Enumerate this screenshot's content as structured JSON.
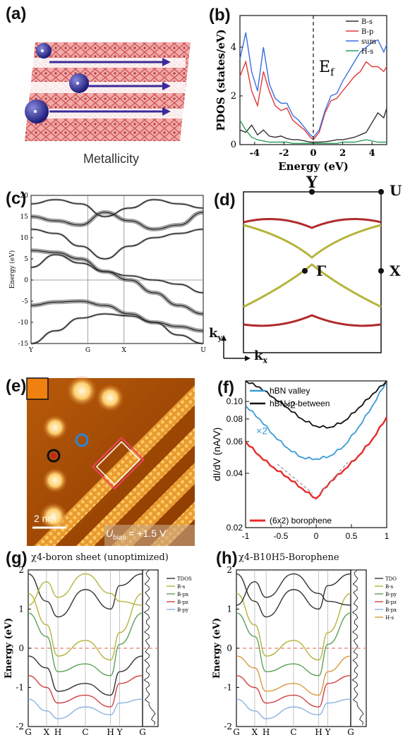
{
  "labels": {
    "a": "(a)",
    "b": "(b)",
    "c": "(c)",
    "d": "(d)",
    "e": "(e)",
    "f": "(f)",
    "g": "(g)",
    "h": "(h)"
  },
  "panel_a": {
    "caption": "Metallicity"
  },
  "panel_d": {
    "points": {
      "Y": "Y",
      "U": "U",
      "Gamma": "Γ",
      "X": "X"
    },
    "axes": {
      "kx": "k",
      "kx_sub": "x",
      "ky": "k",
      "ky_sub": "y"
    }
  },
  "panel_e": {
    "scale": "2 nm",
    "bias_u": "U",
    "bias_sub": "bias",
    "bias_val": " = +1.5 V"
  },
  "panel_g_title": "χ4-boron sheet (unoptimized)",
  "panel_h_title": "χ4-B10H5-Borophene",
  "colors": {
    "bs": "#333333",
    "bp": "#e03a3a",
    "sum": "#3a6ee0",
    "hs": "#2e9e5a",
    "red": "#cc2a2a",
    "olive": "#b4b43c",
    "stmdark": "#3a1800",
    "stmbright": "#ffcf70"
  },
  "chart_data": [
    {
      "id": "b",
      "type": "line",
      "xlabel": "Energy (eV)",
      "ylabel": "PDOS (states/eV)",
      "xlim": [
        -5,
        5
      ],
      "ylim": [
        0,
        5.3
      ],
      "xticks": [
        "-4",
        "-2",
        "0",
        "2",
        "4"
      ],
      "yticks": [
        "0",
        "2",
        "4"
      ],
      "annotation": "Ef",
      "series": [
        {
          "name": "B-s",
          "color": "#333333",
          "x": [
            -5,
            -4.6,
            -4.2,
            -3.8,
            -3.4,
            -3,
            -2.6,
            -2.2,
            -1.8,
            -1.4,
            -1,
            -0.6,
            -0.2,
            0,
            0.4,
            0.8,
            1.2,
            1.6,
            2,
            2.4,
            2.8,
            3.2,
            3.6,
            4,
            4.4,
            4.8,
            5
          ],
          "values": [
            0.6,
            0.5,
            0.8,
            0.4,
            0.6,
            0.35,
            0.3,
            0.35,
            0.25,
            0.2,
            0.2,
            0.15,
            0.1,
            0.1,
            0.1,
            0.12,
            0.15,
            0.2,
            0.2,
            0.25,
            0.3,
            0.4,
            0.5,
            0.9,
            1.3,
            1.1,
            1.5
          ]
        },
        {
          "name": "B-p",
          "color": "#e03a3a",
          "x": [
            -5,
            -4.6,
            -4.2,
            -3.8,
            -3.4,
            -3,
            -2.6,
            -2.2,
            -1.8,
            -1.4,
            -1,
            -0.6,
            -0.2,
            0,
            0.4,
            0.8,
            1.2,
            1.6,
            2,
            2.4,
            2.8,
            3.2,
            3.6,
            4,
            4.4,
            4.8,
            5
          ],
          "values": [
            2.8,
            3.4,
            2.2,
            1.6,
            3.0,
            2.2,
            1.6,
            1.4,
            1.5,
            1.0,
            0.8,
            0.6,
            0.3,
            0.2,
            0.5,
            1.3,
            1.8,
            1.9,
            2.2,
            2.5,
            2.8,
            3.0,
            3.4,
            3.2,
            3.2,
            3.0,
            3.2
          ]
        },
        {
          "name": "sum",
          "color": "#3a6ee0",
          "x": [
            -5,
            -4.6,
            -4.2,
            -3.8,
            -3.4,
            -3,
            -2.6,
            -2.2,
            -1.8,
            -1.4,
            -1,
            -0.6,
            -0.2,
            0,
            0.4,
            0.8,
            1.2,
            1.6,
            2,
            2.4,
            2.8,
            3.2,
            3.6,
            4,
            4.4,
            4.8,
            5
          ],
          "values": [
            3.5,
            4.6,
            3.0,
            2.2,
            4.0,
            2.5,
            1.9,
            1.7,
            1.7,
            1.2,
            1.0,
            0.7,
            0.4,
            0.3,
            0.6,
            1.4,
            2.0,
            2.1,
            2.6,
            3.0,
            3.4,
            3.8,
            4.0,
            4.2,
            4.3,
            3.8,
            4.1
          ]
        },
        {
          "name": "H-s",
          "color": "#2e9e5a",
          "x": [
            -5,
            -4.6,
            -4.2,
            -3.8,
            -3.4,
            -3,
            -2.6,
            -2.2,
            -1.8,
            -1.4,
            -1,
            -0.6,
            -0.2,
            0,
            0.4,
            0.8,
            1.2,
            1.6,
            2,
            2.4,
            2.8,
            3.2,
            3.6,
            4,
            4.4,
            4.8,
            5
          ],
          "values": [
            1.0,
            0.6,
            0.3,
            0.2,
            0.15,
            0.1,
            0.1,
            0.1,
            0.1,
            0.05,
            0.05,
            0.05,
            0.05,
            0.05,
            0.05,
            0.05,
            0.05,
            0.05,
            0.1,
            0.1,
            0.1,
            0.15,
            0.2,
            0.15,
            0.1,
            0.1,
            0.1
          ]
        }
      ]
    },
    {
      "id": "c",
      "type": "line",
      "ylabel": "Energy (eV)",
      "ylim": [
        -15,
        20
      ],
      "yticks": [
        "-15",
        "-10",
        "-5",
        "0",
        "5",
        "10",
        "15",
        "20"
      ],
      "xticks": [
        "Y",
        "G",
        "X",
        "U"
      ],
      "series": [
        {
          "name": "",
          "values": [
            -15,
            -12,
            -9,
            -8,
            -8.5,
            -10,
            -13,
            -15
          ]
        },
        {
          "name": "",
          "values": [
            -6,
            -5.2,
            -5,
            -6,
            -8,
            -10,
            -11,
            -12
          ]
        },
        {
          "name": "",
          "values": [
            3,
            6,
            4,
            2,
            1,
            0,
            -1,
            -3
          ]
        },
        {
          "name": "",
          "values": [
            7,
            6.5,
            5,
            2,
            0,
            -3,
            -6,
            -8
          ]
        },
        {
          "name": "",
          "values": [
            12,
            11,
            8,
            5,
            8,
            10,
            11,
            12
          ]
        },
        {
          "name": "",
          "values": [
            15,
            14,
            13,
            16,
            14,
            12,
            13,
            16
          ]
        },
        {
          "name": "",
          "values": [
            18,
            19,
            18,
            15,
            17,
            19,
            18,
            17
          ]
        }
      ]
    },
    {
      "id": "f",
      "type": "line",
      "xlabel": "",
      "ylabel": "dI/dV (nA/V)",
      "xlim": [
        -1,
        1
      ],
      "yscale": "log",
      "ylim": [
        0.02,
        0.13
      ],
      "xticks": [
        "-1",
        "-0.5",
        "0",
        "0.5",
        "1"
      ],
      "yticks": [
        "0.02",
        "0.04",
        "0.06",
        "0.08",
        "0.10"
      ],
      "annotations": [
        "×2",
        "×2"
      ],
      "series": [
        {
          "name": "hBN valley",
          "color": "#3a9ad9",
          "x": [
            -1,
            -0.8,
            -0.6,
            -0.4,
            -0.2,
            0,
            0.2,
            0.4,
            0.6,
            0.8,
            1
          ],
          "values": [
            0.095,
            0.08,
            0.065,
            0.055,
            0.049,
            0.048,
            0.05,
            0.057,
            0.072,
            0.095,
            0.13
          ]
        },
        {
          "name": "hBN in-between",
          "color": "#111111",
          "x": [
            -1,
            -0.8,
            -0.6,
            -0.4,
            -0.2,
            0,
            0.2,
            0.4,
            0.6,
            0.8,
            1
          ],
          "values": [
            0.13,
            0.12,
            0.105,
            0.092,
            0.08,
            0.073,
            0.072,
            0.078,
            0.092,
            0.11,
            0.13
          ]
        },
        {
          "name": "(6x2) borophene",
          "color": "#e82a2a",
          "x": [
            -1,
            -0.8,
            -0.6,
            -0.4,
            -0.2,
            0,
            0.2,
            0.4,
            0.6,
            0.8,
            1
          ],
          "values": [
            0.06,
            0.05,
            0.043,
            0.038,
            0.033,
            0.029,
            0.036,
            0.042,
            0.05,
            0.062,
            0.082
          ]
        }
      ]
    },
    {
      "id": "g",
      "type": "line",
      "ylabel": "Energy (eV)",
      "ylim": [
        -2,
        2
      ],
      "yticks": [
        "-2",
        "-1",
        "0",
        "1",
        "2"
      ],
      "xticks": [
        "G",
        "X",
        "H",
        "C",
        "H",
        "Y",
        "G"
      ],
      "legend": [
        "TDOS",
        "B-s",
        "B-px",
        "B-pz",
        "B-py"
      ],
      "legend_colors": [
        "#333333",
        "#b4b43c",
        "#5aa05a",
        "#d04040",
        "#8ab4e0"
      ]
    },
    {
      "id": "h",
      "type": "line",
      "ylabel": "Energy (eV)",
      "ylim": [
        -2,
        2
      ],
      "yticks": [
        "-2",
        "-1",
        "0",
        "1",
        "2"
      ],
      "xticks": [
        "G",
        "X",
        "H",
        "C",
        "H",
        "Y",
        "G"
      ],
      "legend": [
        "TDO",
        "B-s",
        "B-py",
        "B-pz",
        "B-px",
        "H-s"
      ],
      "legend_colors": [
        "#333333",
        "#b4b43c",
        "#5aa05a",
        "#d04040",
        "#8ab4e0",
        "#d89a3a"
      ]
    }
  ]
}
